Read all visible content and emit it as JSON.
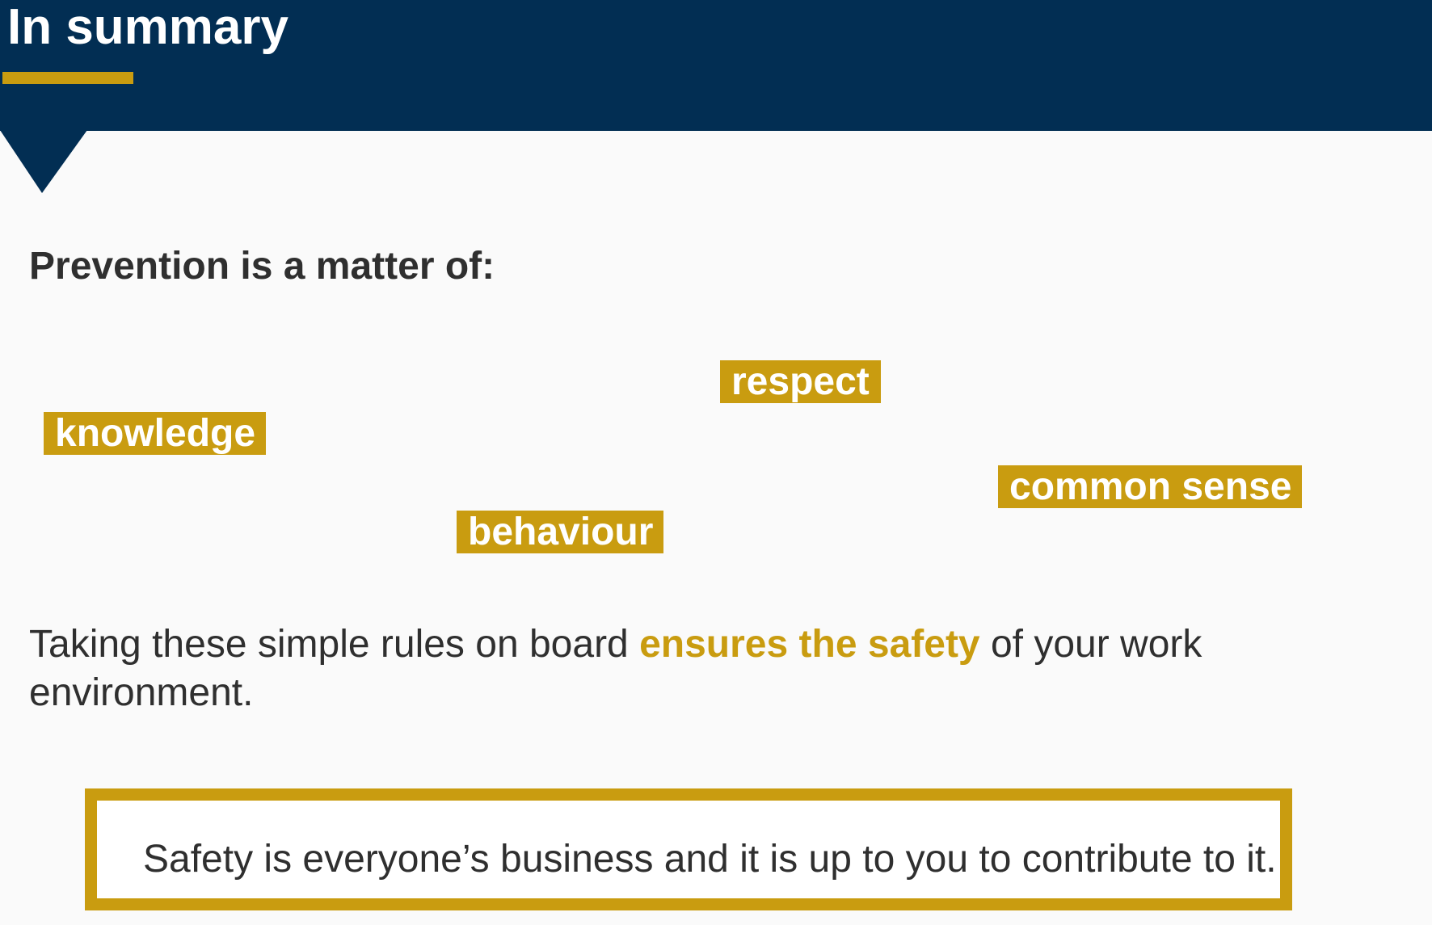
{
  "colors": {
    "navy": "#022e53",
    "gold": "#c99c10",
    "text": "#2f2f2f",
    "background": "#fafafa"
  },
  "header": {
    "title": "In summary"
  },
  "subheading": "Prevention is a matter of:",
  "tags": {
    "respect": "respect",
    "knowledge": "knowledge",
    "common_sense": "common sense",
    "behaviour": "behaviour"
  },
  "body": {
    "before": "Taking these simple rules on board ",
    "highlight": "ensures the safety",
    "after": " of your work environment."
  },
  "callout": {
    "text": "Safety is everyone’s business and it is up to you to contribute to it."
  }
}
